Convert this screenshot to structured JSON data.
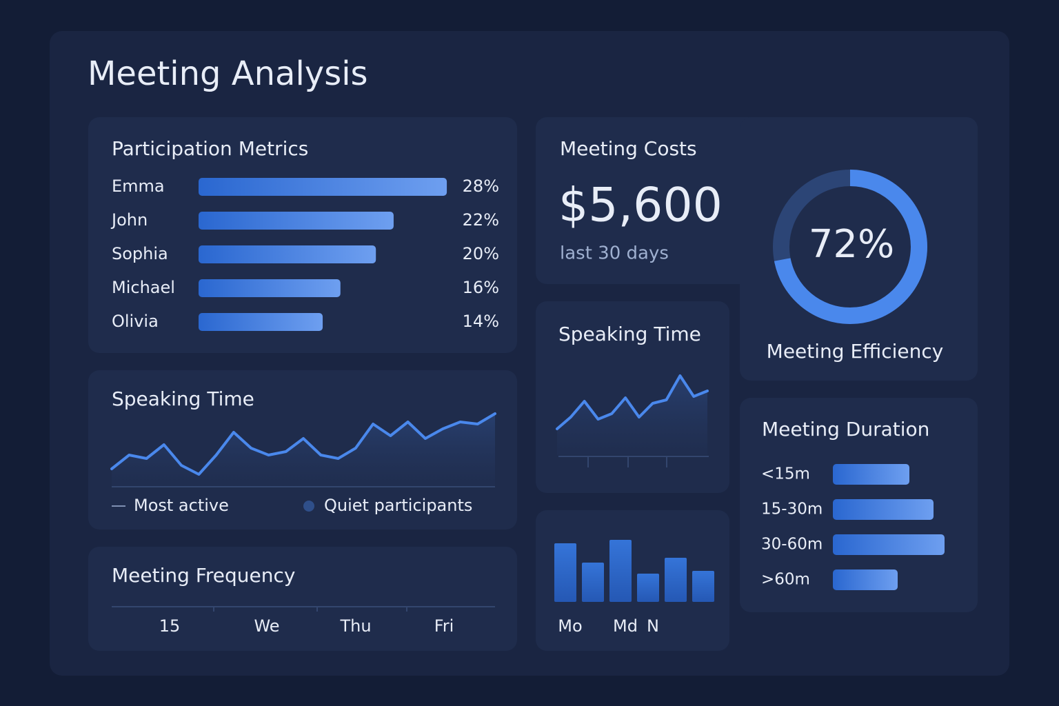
{
  "title": "Meeting Analysis",
  "participation": {
    "title": "Participation Metrics",
    "categories": [
      "Emma",
      "John",
      "Sophia",
      "Michael",
      "Olivia"
    ],
    "values": [
      28,
      22,
      20,
      16,
      14
    ],
    "value_labels": [
      "28%",
      "22%",
      "20%",
      "16%",
      "14%"
    ]
  },
  "speaking_time": {
    "title": "Speaking Time",
    "values": [
      25,
      45,
      40,
      60,
      30,
      17,
      45,
      78,
      55,
      45,
      50,
      69,
      45,
      40,
      55,
      90,
      73,
      93,
      69,
      83,
      93,
      90,
      105
    ],
    "legend": [
      "Most active",
      "Quiet participants"
    ]
  },
  "frequency": {
    "title": "Meeting Frequency",
    "categories": [
      "15",
      "We",
      "Thu",
      "Fri"
    ]
  },
  "costs": {
    "title": "Meeting Costs",
    "amount": "$5,600",
    "period": "last 30 days"
  },
  "efficiency": {
    "label": "Meeting Efficiency",
    "value": 72,
    "value_label": "72%"
  },
  "speaking_time_2": {
    "title": "Speaking Time",
    "values": [
      38,
      55,
      78,
      52,
      60,
      83,
      55,
      75,
      80,
      115,
      85,
      93
    ]
  },
  "weekly_bars": {
    "categories": [
      "Mo",
      null,
      "Md",
      "N",
      null,
      null
    ],
    "values": [
      85,
      57,
      90,
      41,
      64,
      45
    ]
  },
  "duration": {
    "title": "Meeting Duration",
    "categories": [
      "<15m",
      "15-30m",
      "30-60m",
      ">60m"
    ],
    "values": [
      111,
      146,
      162,
      94
    ]
  }
}
